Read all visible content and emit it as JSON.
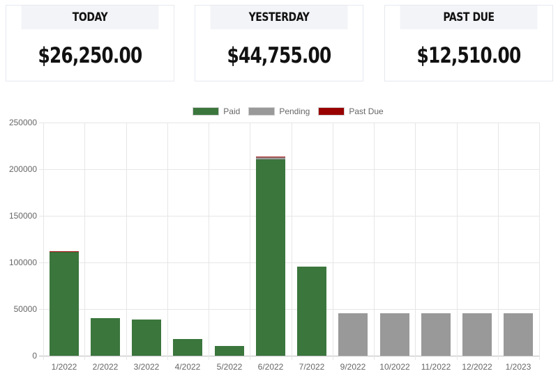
{
  "cards": [
    {
      "label": "TODAY",
      "value": "$26,250.00"
    },
    {
      "label": "YESTERDAY",
      "value": "$44,755.00"
    },
    {
      "label": "PAST DUE",
      "value": "$12,510.00"
    }
  ],
  "colors": {
    "paid": "#3b763d",
    "pending": "#999999",
    "past_due": "#990000"
  },
  "chart_data": {
    "type": "bar",
    "stacked": true,
    "title": "",
    "xlabel": "",
    "ylabel": "",
    "ylim": [
      0,
      250000
    ],
    "yticks": [
      0,
      50000,
      100000,
      150000,
      200000,
      250000
    ],
    "ytick_labels": [
      "0",
      "50000",
      "100000",
      "150000",
      "200000",
      "250000"
    ],
    "grid": true,
    "legend_position": "top",
    "categories": [
      "1/2022",
      "2/2022",
      "3/2022",
      "4/2022",
      "5/2022",
      "6/2022",
      "7/2022",
      "9/2022",
      "10/2022",
      "11/2022",
      "12/2022",
      "1/2023"
    ],
    "series": [
      {
        "name": "Paid",
        "color": "#3b763d",
        "values": [
          111500,
          40300,
          38500,
          18000,
          10500,
          210500,
          95500,
          0,
          0,
          0,
          0,
          0
        ]
      },
      {
        "name": "Pending",
        "color": "#999999",
        "values": [
          0,
          0,
          0,
          0,
          0,
          2300,
          0,
          45500,
          45500,
          45500,
          45500,
          45500
        ]
      },
      {
        "name": "Past Due",
        "color": "#990000",
        "values": [
          800,
          0,
          0,
          0,
          0,
          300,
          0,
          0,
          0,
          0,
          0,
          0
        ]
      }
    ]
  }
}
